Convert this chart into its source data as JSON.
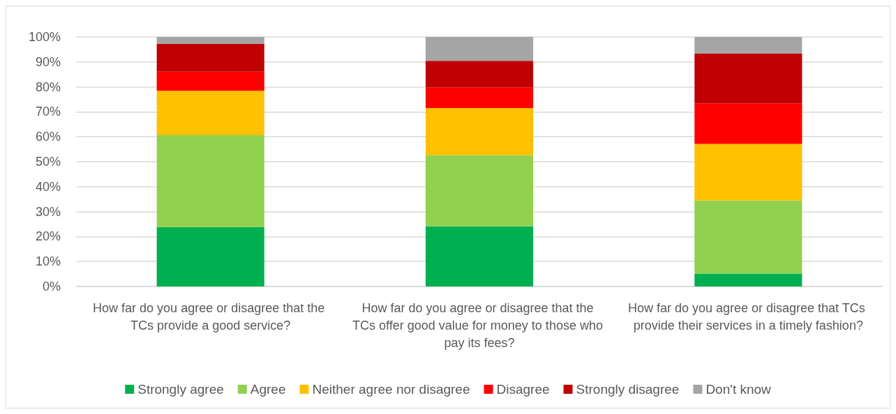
{
  "chart_data": {
    "type": "bar",
    "stacked": true,
    "categories": [
      "How far do you agree or disagree that the TCs provide a good service?",
      "How far do you agree or disagree that the TCs offer good value for money to those who pay its fees?",
      "How far do you agree or disagree that TCs provide their services in a timely fashion?"
    ],
    "series": [
      {
        "name": "Strongly agree",
        "color": "#00b050",
        "values": [
          23.8,
          24.1,
          5.2
        ]
      },
      {
        "name": "Agree",
        "color": "#92d050",
        "values": [
          36.8,
          28.5,
          29.3
        ]
      },
      {
        "name": "Neither agree nor disagree",
        "color": "#ffc000",
        "values": [
          17.8,
          18.9,
          22.6
        ]
      },
      {
        "name": "Disagree",
        "color": "#ff0000",
        "values": [
          7.7,
          8.3,
          16.3
        ]
      },
      {
        "name": "Strongly disagree",
        "color": "#c00000",
        "values": [
          11.2,
          10.6,
          19.9
        ]
      },
      {
        "name": "Don't know",
        "color": "#a5a5a5",
        "values": [
          2.7,
          9.6,
          6.7
        ]
      }
    ],
    "ylim": [
      0,
      100
    ],
    "yticks": [
      {
        "value": 0,
        "label": "0%"
      },
      {
        "value": 10,
        "label": "10%"
      },
      {
        "value": 20,
        "label": "20%"
      },
      {
        "value": 30,
        "label": "30%"
      },
      {
        "value": 40,
        "label": "40%"
      },
      {
        "value": 50,
        "label": "50%"
      },
      {
        "value": 60,
        "label": "60%"
      },
      {
        "value": 70,
        "label": "70%"
      },
      {
        "value": 80,
        "label": "80%"
      },
      {
        "value": 90,
        "label": "90%"
      },
      {
        "value": 100,
        "label": "100%"
      }
    ],
    "grid": "y",
    "legend": "bottom"
  }
}
